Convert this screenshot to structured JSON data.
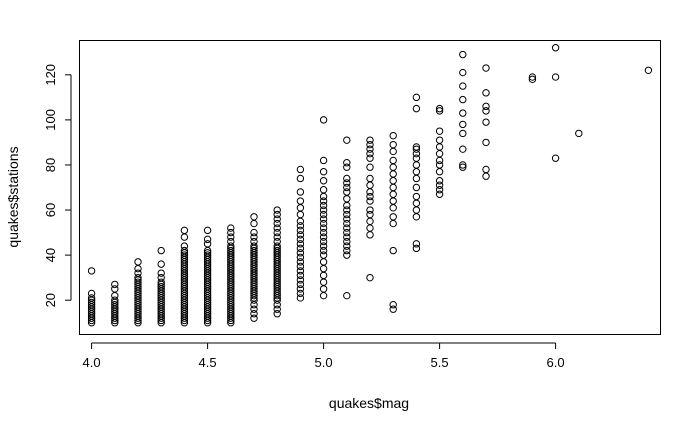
{
  "chart_data": {
    "type": "scatter",
    "title": "",
    "xlabel": "quakes$mag",
    "ylabel": "quakes$stations",
    "xlim": [
      3.95,
      6.45
    ],
    "ylim": [
      5,
      135
    ],
    "xticks": [
      4.0,
      4.5,
      5.0,
      5.5,
      6.0
    ],
    "xtick_labels": [
      "4.0",
      "4.5",
      "5.0",
      "5.5",
      "6.0"
    ],
    "yticks": [
      20,
      40,
      60,
      80,
      100,
      120
    ],
    "ytick_labels": [
      "20",
      "40",
      "60",
      "80",
      "100",
      "120"
    ],
    "grid": false,
    "marker": "open-circle",
    "columns": [
      {
        "x": 4.0,
        "y": [
          10,
          11,
          12,
          13,
          14,
          15,
          16,
          17,
          18,
          19,
          20,
          21,
          23,
          33
        ]
      },
      {
        "x": 4.1,
        "y": [
          10,
          11,
          12,
          13,
          14,
          15,
          16,
          17,
          18,
          19,
          20,
          22,
          25,
          27
        ]
      },
      {
        "x": 4.2,
        "y": [
          10,
          11,
          12,
          13,
          14,
          15,
          16,
          17,
          18,
          19,
          20,
          21,
          22,
          23,
          24,
          25,
          26,
          27,
          28,
          29,
          30,
          32,
          34,
          37
        ]
      },
      {
        "x": 4.3,
        "y": [
          10,
          11,
          12,
          13,
          14,
          15,
          16,
          17,
          18,
          19,
          20,
          21,
          22,
          23,
          24,
          25,
          26,
          27,
          28,
          30,
          32,
          36,
          42
        ]
      },
      {
        "x": 4.4,
        "y": [
          10,
          11,
          12,
          13,
          14,
          15,
          16,
          17,
          18,
          19,
          20,
          21,
          22,
          23,
          24,
          25,
          26,
          27,
          28,
          29,
          30,
          31,
          32,
          33,
          34,
          35,
          36,
          37,
          38,
          39,
          40,
          41,
          42,
          44,
          48,
          51
        ]
      },
      {
        "x": 4.5,
        "y": [
          10,
          11,
          12,
          13,
          14,
          15,
          16,
          17,
          18,
          19,
          20,
          21,
          22,
          23,
          24,
          25,
          26,
          27,
          28,
          29,
          30,
          31,
          32,
          33,
          34,
          35,
          36,
          37,
          38,
          39,
          40,
          41,
          42,
          45,
          47,
          51
        ]
      },
      {
        "x": 4.6,
        "y": [
          10,
          11,
          12,
          13,
          14,
          15,
          16,
          17,
          18,
          19,
          20,
          21,
          22,
          23,
          24,
          25,
          26,
          27,
          28,
          29,
          30,
          31,
          32,
          33,
          34,
          35,
          36,
          37,
          38,
          39,
          40,
          41,
          42,
          43,
          44,
          46,
          48,
          50,
          52
        ]
      },
      {
        "x": 4.7,
        "y": [
          12,
          14,
          16,
          18,
          20,
          21,
          22,
          23,
          24,
          25,
          26,
          27,
          28,
          29,
          30,
          31,
          32,
          33,
          34,
          35,
          36,
          37,
          38,
          39,
          40,
          41,
          42,
          43,
          44,
          46,
          48,
          50,
          54,
          57
        ]
      },
      {
        "x": 4.8,
        "y": [
          14,
          16,
          18,
          20,
          21,
          22,
          23,
          24,
          25,
          26,
          27,
          28,
          29,
          30,
          31,
          32,
          33,
          34,
          35,
          36,
          37,
          38,
          39,
          40,
          41,
          42,
          43,
          44,
          46,
          48,
          50,
          52,
          54,
          56,
          58,
          60
        ]
      },
      {
        "x": 4.9,
        "y": [
          21,
          23,
          25,
          27,
          29,
          31,
          33,
          35,
          37,
          39,
          41,
          43,
          45,
          47,
          49,
          51,
          53,
          55,
          58,
          61,
          64,
          68,
          74,
          78
        ]
      },
      {
        "x": 5.0,
        "y": [
          22,
          25,
          28,
          31,
          34,
          37,
          40,
          42,
          44,
          46,
          48,
          50,
          52,
          54,
          56,
          58,
          60,
          62,
          64,
          66,
          69,
          73,
          77,
          82,
          100
        ]
      },
      {
        "x": 5.1,
        "y": [
          22,
          40,
          42,
          44,
          46,
          48,
          50,
          52,
          54,
          56,
          58,
          60,
          62,
          65,
          68,
          70,
          72,
          74,
          79,
          81,
          91
        ]
      },
      {
        "x": 5.2,
        "y": [
          30,
          49,
          52,
          55,
          58,
          60,
          64,
          66,
          68,
          71,
          74,
          79,
          83,
          85,
          87,
          89,
          91
        ]
      },
      {
        "x": 5.3,
        "y": [
          16,
          18,
          42,
          54,
          57,
          61,
          64,
          67,
          70,
          73,
          76,
          79,
          82,
          86,
          89,
          93
        ]
      },
      {
        "x": 5.4,
        "y": [
          43,
          45,
          57,
          60,
          63,
          66,
          70,
          74,
          77,
          80,
          83,
          85,
          87,
          88,
          105,
          110
        ]
      },
      {
        "x": 5.5,
        "y": [
          67,
          69,
          71,
          73,
          77,
          80,
          82,
          85,
          88,
          91,
          95,
          104,
          105
        ]
      },
      {
        "x": 5.6,
        "y": [
          79,
          80,
          87,
          94,
          98,
          103,
          109,
          115,
          121,
          129
        ]
      },
      {
        "x": 5.7,
        "y": [
          75,
          78,
          90,
          99,
          104,
          106,
          112,
          123
        ]
      },
      {
        "x": 5.9,
        "y": [
          118,
          119
        ]
      },
      {
        "x": 6.0,
        "y": [
          83,
          119,
          132
        ]
      },
      {
        "x": 6.1,
        "y": [
          94
        ]
      },
      {
        "x": 6.4,
        "y": [
          122
        ]
      }
    ]
  }
}
